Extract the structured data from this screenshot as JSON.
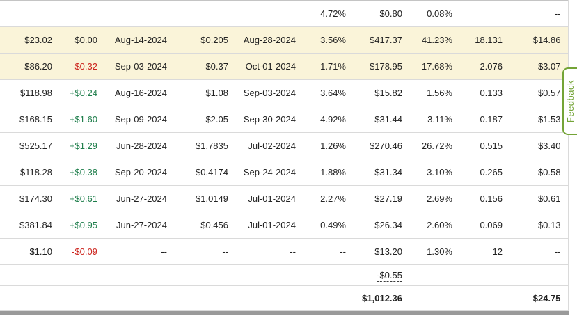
{
  "colors": {
    "row-highlight": "#faf4d9",
    "positive": "#1d7d4a",
    "negative": "#cc241d",
    "feedback-green": "#74a437",
    "row-border": "#dadada",
    "table-top-border": "#c4c4c4",
    "scrollbar-gray": "#9a9a9a",
    "text": "#222222"
  },
  "feedback": {
    "label": "Feedback"
  },
  "table": {
    "rows": [
      {
        "type": "data",
        "highlight": false,
        "cells": [
          "",
          "",
          "",
          "",
          "",
          "4.72%",
          "$0.80",
          "0.08%",
          "",
          "--"
        ]
      },
      {
        "type": "data",
        "highlight": true,
        "cells": [
          "$23.02",
          "$0.00",
          "Aug-14-2024",
          "$0.205",
          "Aug-28-2024",
          "3.56%",
          "$417.37",
          "41.23%",
          "18.131",
          "$14.86"
        ]
      },
      {
        "type": "data",
        "highlight": true,
        "cells": [
          "$86.20",
          "-$0.32",
          "Sep-03-2024",
          "$0.37",
          "Oct-01-2024",
          "1.71%",
          "$178.95",
          "17.68%",
          "2.076",
          "$3.07"
        ]
      },
      {
        "type": "data",
        "highlight": false,
        "cells": [
          "$118.98",
          "+$0.24",
          "Aug-16-2024",
          "$1.08",
          "Sep-03-2024",
          "3.64%",
          "$15.82",
          "1.56%",
          "0.133",
          "$0.57"
        ]
      },
      {
        "type": "data",
        "highlight": false,
        "cells": [
          "$168.15",
          "+$1.60",
          "Sep-09-2024",
          "$2.05",
          "Sep-30-2024",
          "4.92%",
          "$31.44",
          "3.11%",
          "0.187",
          "$1.53"
        ]
      },
      {
        "type": "data",
        "highlight": false,
        "cells": [
          "$525.17",
          "+$1.29",
          "Jun-28-2024",
          "$1.7835",
          "Jul-02-2024",
          "1.26%",
          "$270.46",
          "26.72%",
          "0.515",
          "$3.40"
        ]
      },
      {
        "type": "data",
        "highlight": false,
        "cells": [
          "$118.28",
          "+$0.38",
          "Sep-20-2024",
          "$0.4174",
          "Sep-24-2024",
          "1.88%",
          "$31.34",
          "3.10%",
          "0.265",
          "$0.58"
        ]
      },
      {
        "type": "data",
        "highlight": false,
        "cells": [
          "$174.30",
          "+$0.61",
          "Jun-27-2024",
          "$1.0149",
          "Jul-01-2024",
          "2.27%",
          "$27.19",
          "2.69%",
          "0.156",
          "$0.61"
        ]
      },
      {
        "type": "data",
        "highlight": false,
        "cells": [
          "$381.84",
          "+$0.95",
          "Jun-27-2024",
          "$0.456",
          "Jul-01-2024",
          "0.49%",
          "$26.34",
          "2.60%",
          "0.069",
          "$0.13"
        ]
      },
      {
        "type": "data",
        "highlight": false,
        "cells": [
          "$1.10",
          "-$0.09",
          "--",
          "--",
          "--",
          "--",
          "$13.20",
          "1.30%",
          "12",
          "--"
        ]
      },
      {
        "type": "adjustment",
        "highlight": false,
        "cells": [
          "",
          "",
          "",
          "",
          "",
          "",
          "-$0.55",
          "",
          "",
          ""
        ]
      },
      {
        "type": "total",
        "highlight": false,
        "cells": [
          "",
          "",
          "",
          "",
          "",
          "",
          "$1,012.36",
          "",
          "",
          "$24.75"
        ]
      }
    ]
  }
}
